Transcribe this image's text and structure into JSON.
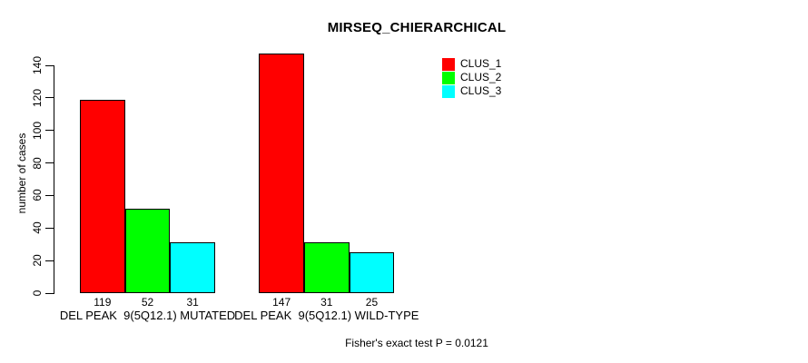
{
  "chart_data": {
    "type": "bar",
    "title": "MIRSEQ_CHIERARCHICAL",
    "ylabel": "number of cases",
    "xlabel": "",
    "ylim": [
      0,
      140
    ],
    "yticks": [
      0,
      20,
      40,
      60,
      80,
      100,
      120,
      140
    ],
    "categories": [
      "DEL PEAK  9(5Q12.1) MUTATED",
      "DEL PEAK  9(5Q12.1) WILD-TYPE"
    ],
    "series": [
      {
        "name": "CLUS_1",
        "color": "#ff0000",
        "values": [
          119,
          147
        ]
      },
      {
        "name": "CLUS_2",
        "color": "#00ff00",
        "values": [
          52,
          31
        ]
      },
      {
        "name": "CLUS_3",
        "color": "#00ffff",
        "values": [
          31,
          25
        ]
      }
    ],
    "show_bar_values": true,
    "legend_position": "top-right",
    "grid": false,
    "background": "#ffffff",
    "axis_color": "#000000",
    "annotation": "Fisher's exact test P = 0.0121"
  }
}
